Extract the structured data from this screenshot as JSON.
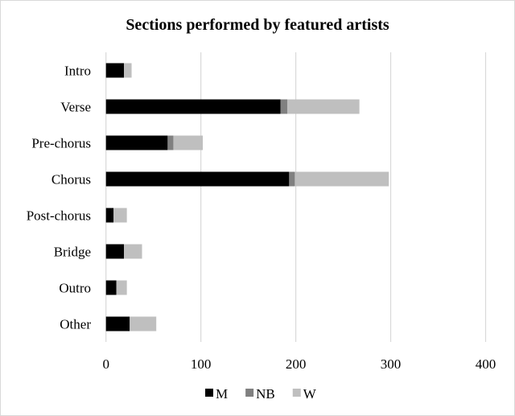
{
  "chart_data": {
    "type": "bar",
    "orientation": "horizontal",
    "stacked": true,
    "title": "Sections performed by featured artists",
    "categories": [
      "Intro",
      "Verse",
      "Pre-chorus",
      "Chorus",
      "Post-chorus",
      "Bridge",
      "Outro",
      "Other"
    ],
    "series": [
      {
        "name": "M",
        "color": "#000000",
        "values": [
          19,
          184,
          65,
          193,
          8,
          19,
          11,
          25
        ]
      },
      {
        "name": "NB",
        "color": "#808080",
        "values": [
          0,
          7,
          6,
          6,
          0,
          0,
          0,
          0
        ]
      },
      {
        "name": "W",
        "color": "#bfbfbf",
        "values": [
          8,
          76,
          31,
          99,
          14,
          19,
          11,
          28
        ]
      }
    ],
    "xlim": [
      0,
      400
    ],
    "xticks": [
      "0",
      "100",
      "200",
      "300",
      "400"
    ],
    "grid": "vertical",
    "legend": "bottom"
  }
}
